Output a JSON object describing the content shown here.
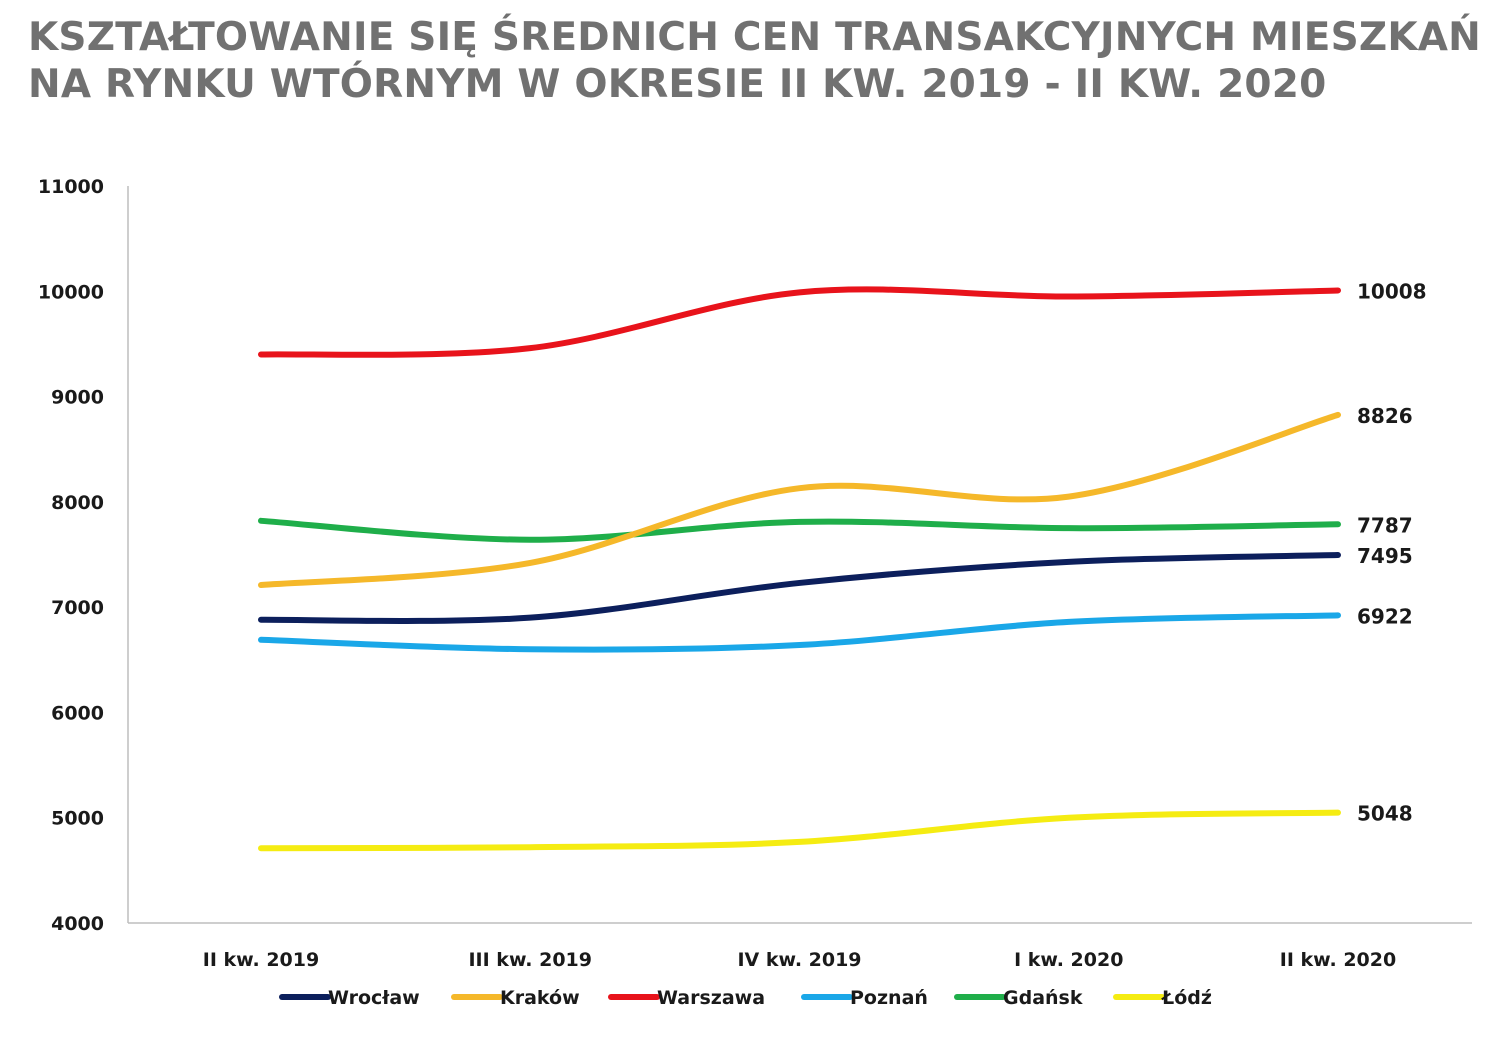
{
  "chart_data": {
    "type": "line",
    "title_lines": [
      "KSZTAŁTOWANIE SIĘ ŚREDNICH CEN TRANSAKCYJNYCH MIESZKAŃ",
      "NA RYNKU WTÓRNYM W OKRESIE II KW. 2019 - II KW. 2020"
    ],
    "xlabel": "",
    "ylabel": "",
    "categories": [
      "II kw. 2019",
      "III kw. 2019",
      "IV kw. 2019",
      "I kw. 2020",
      "II kw. 2020"
    ],
    "ylim": [
      4000,
      11000
    ],
    "yticks": [
      4000,
      5000,
      6000,
      7000,
      8000,
      9000,
      10000,
      11000
    ],
    "grid": false,
    "legend_position": "bottom",
    "series": [
      {
        "name": "Wrocław",
        "color": "#0c1f5c",
        "values": [
          6880,
          6900,
          7230,
          7430,
          7495
        ]
      },
      {
        "name": "Kraków",
        "color": "#f5b82a",
        "values": [
          7210,
          7420,
          8130,
          8050,
          8826
        ]
      },
      {
        "name": "Warszawa",
        "color": "#e8131b",
        "values": [
          9400,
          9460,
          9990,
          9950,
          10008
        ]
      },
      {
        "name": "Poznań",
        "color": "#1aa7e8",
        "values": [
          6690,
          6600,
          6640,
          6860,
          6922
        ]
      },
      {
        "name": "Gdańsk",
        "color": "#1fae4a",
        "values": [
          7820,
          7640,
          7810,
          7750,
          7787
        ]
      },
      {
        "name": "Łódź",
        "color": "#f5ec12",
        "values": [
          4710,
          4720,
          4770,
          5000,
          5048
        ]
      }
    ],
    "end_labels": [
      "7495",
      "8826",
      "10008",
      "6922",
      "7787",
      "5048"
    ]
  }
}
